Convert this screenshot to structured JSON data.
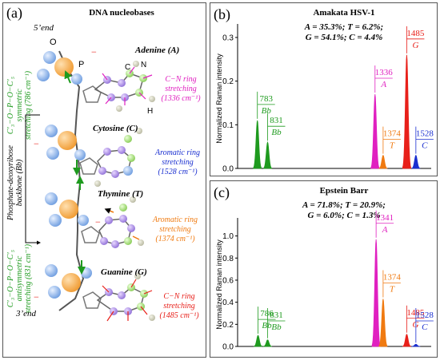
{
  "panel_a": {
    "letter": "(a)",
    "title": "DNA nucleobases",
    "five_end": "5’end",
    "three_end": "3’end",
    "backbone_label_1": "Phosphate-deoxyribose",
    "backbone_label_2": "backbone (Bb)",
    "sym_1": "C′₃−O−P−O−C′₅",
    "sym_2": "symmetric",
    "sym_3": "stretching (786 cm⁻¹)",
    "anti_1": "C′₃−O−P−O−C′₅",
    "anti_2": "antisymmetric",
    "anti_3": "stretching (831 cm⁻¹)",
    "atom_o": "O",
    "atom_p": "P",
    "atom_c": "C",
    "atom_n": "N",
    "atom_h": "H",
    "minus": "−",
    "bases": [
      {
        "name": "Adenine (A)",
        "note_1": "C−N ring",
        "note_2": "stretching",
        "note_3": "(1336 cm⁻¹)",
        "color": "#e020c0"
      },
      {
        "name": "Cytosine (C)",
        "note_1": "Aromatic ring",
        "note_2": "stretching",
        "note_3": "(1528 cm⁻¹)",
        "color": "#1a2fd0"
      },
      {
        "name": "Thymine (T)",
        "note_1": "Aromatic ring",
        "note_2": "stretching",
        "note_3": "(1374 cm⁻¹)",
        "color": "#f07a10"
      },
      {
        "name": "Guanine (G)",
        "note_1": "C−N ring",
        "note_2": "stretching",
        "note_3": "(1485 cm⁻¹)",
        "color": "#e8201a"
      }
    ]
  },
  "chart_data": [
    {
      "type": "area",
      "panel": "(b)",
      "title": "Amakata HSV-1",
      "composition_line1": "A = 35.3%; T = 6.2%;",
      "composition_line2": "G = 54.1%; C = 4.4%",
      "ylabel": "Normalized Raman intensity",
      "ylim": [
        0,
        0.32
      ],
      "yticks": [
        "0.0",
        "0.1",
        "0.2",
        "0.3"
      ],
      "yticks_values": [
        0.0,
        0.1,
        0.2,
        0.3
      ],
      "series": [
        {
          "name": "Bb",
          "x": 783,
          "y": 0.11,
          "color": "#1e9a1e",
          "label": "783"
        },
        {
          "name": "Bb",
          "x": 831,
          "y": 0.06,
          "color": "#1e9a1e",
          "label": "831"
        },
        {
          "name": "A",
          "x": 1336,
          "y": 0.17,
          "color": "#e020c0",
          "label": "1336"
        },
        {
          "name": "T",
          "x": 1374,
          "y": 0.03,
          "color": "#f07a10",
          "label": "1374"
        },
        {
          "name": "G",
          "x": 1485,
          "y": 0.26,
          "color": "#e8201a",
          "label": "1485"
        },
        {
          "name": "C",
          "x": 1528,
          "y": 0.03,
          "color": "#1a2fd0",
          "label": "1528"
        }
      ]
    },
    {
      "type": "area",
      "panel": "(c)",
      "title": "Epstein Barr",
      "composition_line1": "A = 71.8%; T = 20.9%;",
      "composition_line2": "G = 6.0%; C = 1.3%",
      "ylabel": "Normalized Raman intensity",
      "ylim": [
        0,
        1.12
      ],
      "yticks": [
        "0.0",
        "0.2",
        "0.4",
        "0.6",
        "0.8",
        "1.0"
      ],
      "yticks_values": [
        0.0,
        0.2,
        0.4,
        0.6,
        0.8,
        1.0
      ],
      "series": [
        {
          "name": "Bb",
          "x": 786,
          "y": 0.1,
          "color": "#1e9a1e",
          "label": "786"
        },
        {
          "name": "Bb",
          "x": 831,
          "y": 0.06,
          "color": "#1e9a1e",
          "label": "831"
        },
        {
          "name": "A",
          "x": 1341,
          "y": 0.97,
          "color": "#e020c0",
          "label": "1341"
        },
        {
          "name": "T",
          "x": 1374,
          "y": 0.43,
          "color": "#f07a10",
          "label": "1374"
        },
        {
          "name": "G",
          "x": 1485,
          "y": 0.11,
          "color": "#e8201a",
          "label": "1485"
        },
        {
          "name": "C",
          "x": 1528,
          "y": 0.02,
          "color": "#1a2fd0",
          "label": "1528"
        }
      ]
    }
  ]
}
